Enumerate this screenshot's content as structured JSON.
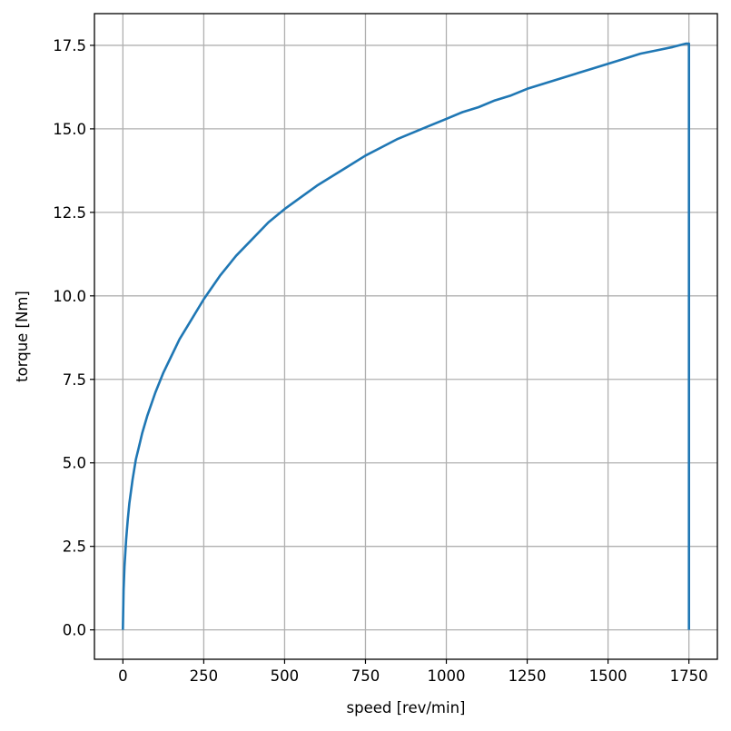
{
  "chart_data": {
    "type": "line",
    "xlabel": "speed [rev/min]",
    "ylabel": "torque [Nm]",
    "xlim": [
      -88,
      1838
    ],
    "ylim": [
      -0.88,
      18.45
    ],
    "grid": true,
    "xticks": [
      0,
      250,
      500,
      750,
      1000,
      1250,
      1500,
      1750
    ],
    "xtick_labels": [
      "0",
      "250",
      "500",
      "750",
      "1000",
      "1250",
      "1500",
      "1750"
    ],
    "yticks": [
      0,
      2.5,
      5,
      7.5,
      10,
      12.5,
      15,
      17.5
    ],
    "ytick_labels": [
      "0.0",
      "2.5",
      "5.0",
      "7.5",
      "10.0",
      "12.5",
      "15.0",
      "17.5"
    ],
    "line_color": "#1f77b4",
    "series": [
      {
        "x": [
          0,
          2,
          5,
          10,
          15,
          20,
          30,
          40,
          50,
          60,
          75,
          100,
          125,
          150,
          175,
          200,
          250,
          300,
          350,
          400,
          450,
          500,
          550,
          600,
          650,
          700,
          750,
          800,
          850,
          900,
          950,
          1000,
          1050,
          1100,
          1150,
          1200,
          1250,
          1300,
          1350,
          1400,
          1450,
          1500,
          1550,
          1600,
          1650,
          1700,
          1720,
          1740,
          1750,
          1750
        ],
        "y": [
          0,
          1.2,
          1.9,
          2.7,
          3.3,
          3.8,
          4.5,
          5.1,
          5.5,
          5.9,
          6.4,
          7.1,
          7.7,
          8.2,
          8.7,
          9.1,
          9.9,
          10.6,
          11.2,
          11.7,
          12.2,
          12.6,
          12.95,
          13.3,
          13.6,
          13.9,
          14.2,
          14.45,
          14.7,
          14.9,
          15.1,
          15.3,
          15.5,
          15.65,
          15.85,
          16.0,
          16.2,
          16.35,
          16.5,
          16.65,
          16.8,
          16.95,
          17.1,
          17.25,
          17.35,
          17.45,
          17.5,
          17.55,
          17.55,
          0
        ]
      }
    ]
  }
}
